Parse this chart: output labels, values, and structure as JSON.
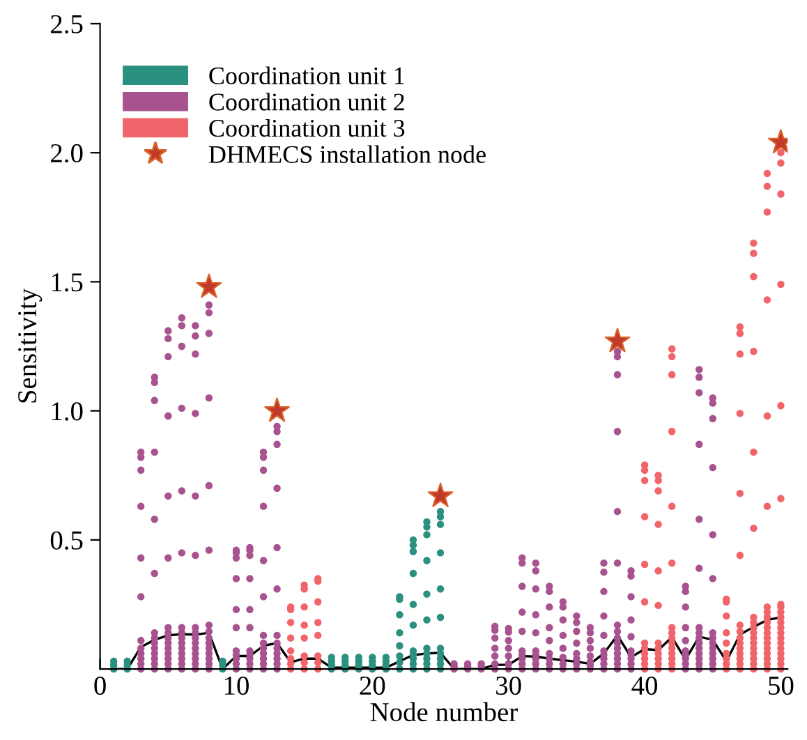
{
  "chart_data": {
    "type": "scatter",
    "xlabel": "Node number",
    "ylabel": "Sensitivity",
    "xlim": [
      0,
      50.5
    ],
    "xticks": [
      0,
      10,
      20,
      30,
      40,
      50
    ],
    "ylim": [
      0,
      2.5
    ],
    "yticks": [
      0.5,
      {
        "value": 1,
        "label": "1.0"
      },
      1.5,
      {
        "value": 2,
        "label": "2.0"
      },
      2.5
    ],
    "grid": false,
    "legend": "top left",
    "marker": "circle",
    "series": [
      {
        "name": "Coordination unit 1",
        "color": "#2a9080",
        "x": [
          1,
          1,
          1,
          2,
          2,
          2,
          9,
          9,
          9,
          17,
          17,
          17,
          17,
          18,
          18,
          18,
          18,
          19,
          19,
          19,
          19,
          20,
          20,
          20,
          20,
          21,
          21,
          21,
          21,
          22,
          22,
          22,
          22,
          22,
          22,
          22,
          22,
          23,
          23,
          23,
          23,
          23,
          23,
          23,
          23,
          23,
          23,
          23,
          24,
          24,
          24,
          24,
          24,
          24,
          24,
          24,
          24,
          24,
          24,
          25,
          25,
          25,
          25,
          25,
          25,
          25,
          25,
          25,
          25,
          25
        ],
        "values": [
          0,
          0.015,
          0.03,
          0,
          0.015,
          0.03,
          0,
          0.015,
          0.03,
          0,
          0.015,
          0.03,
          0.045,
          0,
          0.015,
          0.03,
          0.045,
          0,
          0.015,
          0.03,
          0.045,
          0,
          0.015,
          0.03,
          0.045,
          0,
          0.015,
          0.03,
          0.045,
          0,
          0.025,
          0.05,
          0.09,
          0.14,
          0.21,
          0.27,
          0.28,
          0,
          0.02,
          0.04,
          0.055,
          0.07,
          0.17,
          0.25,
          0.37,
          0.455,
          0.48,
          0.5,
          0,
          0.02,
          0.04,
          0.06,
          0.08,
          0.19,
          0.29,
          0.42,
          0.52,
          0.55,
          0.57,
          0,
          0.02,
          0.04,
          0.06,
          0.08,
          0.2,
          0.31,
          0.45,
          0.56,
          0.59,
          0.61
        ]
      },
      {
        "name": "Coordination unit 2",
        "color": "#a8538f",
        "x": [
          3,
          3,
          3,
          3,
          3,
          3,
          3,
          3,
          3,
          3,
          3,
          3,
          4,
          4,
          4,
          4,
          4,
          4,
          4,
          4,
          4,
          4,
          4,
          4,
          4,
          4,
          5,
          5,
          5,
          5,
          5,
          5,
          5,
          5,
          5,
          5,
          5,
          5,
          5,
          5,
          5,
          6,
          6,
          6,
          6,
          6,
          6,
          6,
          6,
          6,
          6,
          6,
          6,
          6,
          6,
          6,
          7,
          7,
          7,
          7,
          7,
          7,
          7,
          7,
          7,
          7,
          7,
          7,
          7,
          7,
          7,
          8,
          8,
          8,
          8,
          8,
          8,
          8,
          8,
          8,
          8,
          8,
          8,
          8,
          8,
          8,
          10,
          10,
          10,
          10,
          10,
          10,
          10,
          10,
          10,
          10,
          10,
          11,
          11,
          11,
          11,
          11,
          11,
          11,
          11,
          11,
          11,
          11,
          12,
          12,
          12,
          12,
          12,
          12,
          12,
          12,
          12,
          12,
          12,
          12,
          12,
          13,
          13,
          13,
          13,
          13,
          13,
          13,
          13,
          13,
          13,
          13,
          13,
          13,
          26,
          26,
          26,
          27,
          27,
          27,
          28,
          28,
          28,
          29,
          29,
          29,
          29,
          29,
          29,
          29,
          30,
          30,
          30,
          30,
          30,
          30,
          30,
          31,
          31,
          31,
          31,
          31,
          31,
          31,
          31,
          31,
          31,
          32,
          32,
          32,
          32,
          32,
          32,
          32,
          32,
          32,
          32,
          33,
          33,
          33,
          33,
          33,
          33,
          33,
          33,
          33,
          34,
          34,
          34,
          34,
          34,
          34,
          34,
          34,
          35,
          35,
          35,
          35,
          35,
          35,
          35,
          35,
          36,
          36,
          36,
          36,
          36,
          36,
          36,
          36,
          37,
          37,
          37,
          37,
          37,
          37,
          37,
          37,
          37,
          37,
          38,
          38,
          38,
          38,
          38,
          38,
          38,
          38,
          38,
          38,
          38,
          38,
          38,
          38,
          38,
          39,
          39,
          39,
          39,
          39,
          39,
          39,
          39,
          39,
          39,
          43,
          43,
          43,
          43,
          43,
          43,
          43,
          43,
          43,
          43,
          44,
          44,
          44,
          44,
          44,
          44,
          44,
          44,
          44,
          44,
          44,
          44,
          44,
          44,
          44,
          45,
          45,
          45,
          45,
          45,
          45,
          45,
          45,
          45,
          45,
          45,
          45,
          45,
          45
        ],
        "values": [
          0,
          0.02,
          0.04,
          0.06,
          0.08,
          0.11,
          0.28,
          0.43,
          0.63,
          0.77,
          0.82,
          0.84,
          0,
          0.02,
          0.04,
          0.06,
          0.08,
          0.1,
          0.12,
          0.14,
          0.37,
          0.58,
          0.84,
          1.04,
          1.11,
          1.13,
          0,
          0.02,
          0.04,
          0.06,
          0.08,
          0.1,
          0.12,
          0.14,
          0.16,
          0.43,
          0.67,
          0.98,
          1.21,
          1.28,
          1.31,
          0,
          0.02,
          0.04,
          0.06,
          0.08,
          0.1,
          0.12,
          0.14,
          0.16,
          0.45,
          0.69,
          1.01,
          1.25,
          1.33,
          1.36,
          0,
          0.02,
          0.04,
          0.06,
          0.08,
          0.1,
          0.12,
          0.14,
          0.16,
          0.44,
          0.67,
          0.99,
          1.22,
          1.29,
          1.33,
          0,
          0.02,
          0.04,
          0.06,
          0.08,
          0.1,
          0.12,
          0.145,
          0.17,
          0.46,
          0.71,
          1.05,
          1.3,
          1.38,
          1.41,
          0,
          0.02,
          0.04,
          0.055,
          0.07,
          0.16,
          0.23,
          0.35,
          0.43,
          0.45,
          0.46,
          0,
          0.02,
          0.04,
          0.055,
          0.07,
          0.16,
          0.23,
          0.35,
          0.44,
          0.46,
          0.47,
          0,
          0.02,
          0.04,
          0.06,
          0.08,
          0.1,
          0.13,
          0.28,
          0.42,
          0.63,
          0.77,
          0.82,
          0.84,
          0,
          0.02,
          0.04,
          0.06,
          0.08,
          0.1,
          0.13,
          0.31,
          0.47,
          0.7,
          0.87,
          0.92,
          0.94,
          0,
          0.01,
          0.02,
          0,
          0.01,
          0.02,
          0,
          0.01,
          0.02,
          0,
          0.02,
          0.05,
          0.08,
          0.12,
          0.15,
          0.165,
          0,
          0.02,
          0.05,
          0.08,
          0.11,
          0.143,
          0.157,
          0,
          0.02,
          0.04,
          0.055,
          0.07,
          0.146,
          0.22,
          0.32,
          0.41,
          0.43,
          0,
          0.02,
          0.04,
          0.055,
          0.07,
          0.14,
          0.21,
          0.31,
          0.38,
          0.41,
          0,
          0.02,
          0.04,
          0.06,
          0.11,
          0.16,
          0.24,
          0.3,
          0.32,
          0,
          0.02,
          0.045,
          0.08,
          0.13,
          0.19,
          0.24,
          0.26,
          0,
          0.02,
          0.04,
          0.06,
          0.1,
          0.146,
          0.18,
          0.205,
          0,
          0.015,
          0.027,
          0.05,
          0.08,
          0.11,
          0.14,
          0.16,
          0,
          0.02,
          0.04,
          0.055,
          0.07,
          0.13,
          0.205,
          0.3,
          0.375,
          0.41,
          0,
          0.02,
          0.04,
          0.06,
          0.08,
          0.1,
          0.12,
          0.145,
          0.17,
          0.41,
          0.61,
          0.92,
          1.14,
          1.21,
          1.23,
          0,
          0.02,
          0.04,
          0.055,
          0.07,
          0.125,
          0.19,
          0.28,
          0.36,
          0.38,
          0,
          0.02,
          0.04,
          0.055,
          0.07,
          0.11,
          0.16,
          0.24,
          0.3,
          0.32,
          0,
          0.02,
          0.04,
          0.06,
          0.08,
          0.1,
          0.12,
          0.14,
          0.16,
          0.39,
          0.58,
          0.87,
          1.07,
          1.13,
          1.16,
          0,
          0.02,
          0.04,
          0.06,
          0.08,
          0.1,
          0.12,
          0.14,
          0.35,
          0.52,
          0.78,
          0.97,
          1.03,
          1.05
        ]
      },
      {
        "name": "Coordination unit 3",
        "color": "#f0646a",
        "x": [
          14,
          14,
          14,
          14,
          14,
          14,
          14,
          14,
          15,
          15,
          15,
          15,
          15,
          15,
          15,
          15,
          16,
          16,
          16,
          16,
          16,
          16,
          16,
          16,
          40,
          40,
          40,
          40,
          40,
          40,
          40,
          40,
          40,
          40,
          40,
          40,
          41,
          41,
          41,
          41,
          41,
          41,
          41,
          41,
          41,
          41,
          41,
          41,
          42,
          42,
          42,
          42,
          42,
          42,
          42,
          42,
          42,
          42,
          42,
          42,
          42,
          42,
          42,
          46,
          46,
          46,
          46,
          46,
          46,
          46,
          46,
          46,
          47,
          47,
          47,
          47,
          47,
          47,
          47,
          47,
          47,
          47,
          47,
          47,
          47,
          47,
          47,
          48,
          48,
          48,
          48,
          48,
          48,
          48,
          48,
          48,
          48,
          48,
          48,
          48,
          48,
          48,
          48,
          48,
          49,
          49,
          49,
          49,
          49,
          49,
          49,
          49,
          49,
          49,
          49,
          49,
          49,
          49,
          49,
          49,
          49,
          49,
          49,
          50,
          50,
          50,
          50,
          50,
          50,
          50,
          50,
          50,
          50,
          50,
          50,
          50,
          50,
          50,
          50,
          50,
          50,
          50,
          50
        ],
        "values": [
          0,
          0.02,
          0.04,
          0.07,
          0.12,
          0.18,
          0.23,
          0.24,
          0,
          0.025,
          0.05,
          0.12,
          0.17,
          0.24,
          0.31,
          0.325,
          0,
          0.025,
          0.05,
          0.13,
          0.18,
          0.26,
          0.34,
          0.35,
          0,
          0.02,
          0.04,
          0.06,
          0.08,
          0.1,
          0.26,
          0.405,
          0.59,
          0.73,
          0.77,
          0.79,
          0,
          0.02,
          0.04,
          0.06,
          0.08,
          0.1,
          0.246,
          0.38,
          0.56,
          0.69,
          0.73,
          0.75,
          0,
          0.02,
          0.04,
          0.06,
          0.08,
          0.1,
          0.12,
          0.14,
          0.16,
          0.41,
          0.63,
          0.92,
          1.14,
          1.21,
          1.24,
          0,
          0.02,
          0.04,
          0.06,
          0.1,
          0.14,
          0.205,
          0.26,
          0.27,
          0,
          0.02,
          0.04,
          0.06,
          0.08,
          0.1,
          0.12,
          0.145,
          0.17,
          0.44,
          0.68,
          0.99,
          1.22,
          1.3,
          1.325,
          0,
          0.02,
          0.04,
          0.06,
          0.08,
          0.1,
          0.12,
          0.14,
          0.16,
          0.18,
          0.2,
          0.545,
          0.84,
          1.23,
          1.52,
          1.61,
          1.65,
          0,
          0.02,
          0.04,
          0.06,
          0.08,
          0.1,
          0.12,
          0.14,
          0.16,
          0.18,
          0.2,
          0.22,
          0.24,
          0.63,
          0.98,
          1.43,
          1.77,
          1.87,
          1.92,
          0,
          0.02,
          0.04,
          0.06,
          0.08,
          0.1,
          0.12,
          0.14,
          0.16,
          0.18,
          0.2,
          0.22,
          0.24,
          0.25,
          0.66,
          1.02,
          1.49,
          1.84,
          1.96,
          2.0
        ]
      },
      {
        "color": "#000000",
        "type": "line",
        "marker": "none",
        "x": [
          1,
          2,
          3,
          4,
          5,
          6,
          7,
          8,
          9,
          10,
          11,
          12,
          13,
          14,
          15,
          16,
          17,
          18,
          19,
          20,
          21,
          22,
          23,
          24,
          25,
          26,
          27,
          28,
          29,
          30,
          31,
          32,
          33,
          34,
          35,
          36,
          37,
          38,
          39,
          40,
          41,
          42,
          43,
          44,
          45,
          46,
          47,
          48,
          49,
          50
        ],
        "values": [
          0,
          0,
          0.085,
          0.113,
          0.13,
          0.135,
          0.133,
          0.14,
          0,
          0.05,
          0.05,
          0.09,
          0.1,
          0.026,
          0.04,
          0.04,
          0.005,
          0.005,
          0.005,
          0.005,
          0.005,
          0.03,
          0.054,
          0.06,
          0.063,
          0,
          0,
          0,
          0.016,
          0.016,
          0.05,
          0.048,
          0.04,
          0.034,
          0.028,
          0.02,
          0.06,
          0.13,
          0.046,
          0.077,
          0.073,
          0.123,
          0.036,
          0.125,
          0.113,
          0.03,
          0.133,
          0.163,
          0.19,
          0.2
        ]
      },
      {
        "name": "DHMECS installation node",
        "color": "#c0392b",
        "marker": "star",
        "x": [
          8,
          13,
          25,
          38,
          50
        ],
        "values": [
          1.48,
          1.0,
          0.67,
          1.27,
          2.04
        ]
      }
    ]
  }
}
